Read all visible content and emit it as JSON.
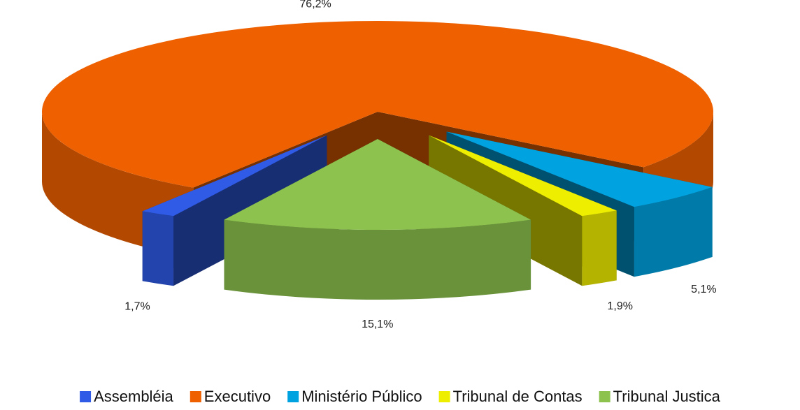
{
  "chart_data": {
    "type": "pie3d",
    "categories": [
      "Assembléia",
      "Executivo",
      "Ministério Público",
      "Tribunal de Contas",
      "Tribunal Justica"
    ],
    "values": [
      1.7,
      76.2,
      5.1,
      1.9,
      15.1
    ],
    "value_labels": [
      "1,7%",
      "76,2%",
      "5,1%",
      "1,9%",
      "15,1%"
    ],
    "colors": [
      "#2f5be6",
      "#ee6000",
      "#00a2e0",
      "#eeee00",
      "#8dc24f"
    ],
    "legend": "bottom"
  }
}
